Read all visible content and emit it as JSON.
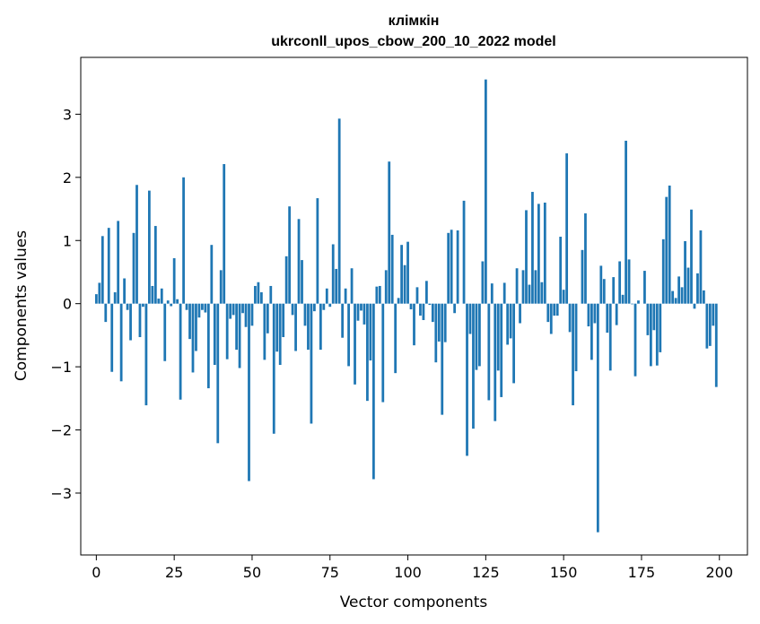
{
  "chart_data": {
    "type": "bar",
    "title": "клімкін",
    "subtitle": "ukrconll_upos_cbow_200_10_2022 model",
    "xlabel": "Vector components",
    "ylabel": "Components values",
    "xlim": [
      -5,
      209
    ],
    "ylim": [
      -3.98,
      3.9
    ],
    "xticks": [
      0,
      25,
      50,
      75,
      100,
      125,
      150,
      175,
      200
    ],
    "yticks": [
      -3,
      -2,
      -1,
      0,
      1,
      2,
      3
    ],
    "grid": false,
    "bar_color": "#1f77b4",
    "x": [
      0,
      1,
      2,
      3,
      4,
      5,
      6,
      7,
      8,
      9,
      10,
      11,
      12,
      13,
      14,
      15,
      16,
      17,
      18,
      19,
      20,
      21,
      22,
      23,
      24,
      25,
      26,
      27,
      28,
      29,
      30,
      31,
      32,
      33,
      34,
      35,
      36,
      37,
      38,
      39,
      40,
      41,
      42,
      43,
      44,
      45,
      46,
      47,
      48,
      49,
      50,
      51,
      52,
      53,
      54,
      55,
      56,
      57,
      58,
      59,
      60,
      61,
      62,
      63,
      64,
      65,
      66,
      67,
      68,
      69,
      70,
      71,
      72,
      73,
      74,
      75,
      76,
      77,
      78,
      79,
      80,
      81,
      82,
      83,
      84,
      85,
      86,
      87,
      88,
      89,
      90,
      91,
      92,
      93,
      94,
      95,
      96,
      97,
      98,
      99,
      100,
      101,
      102,
      103,
      104,
      105,
      106,
      107,
      108,
      109,
      110,
      111,
      112,
      113,
      114,
      115,
      116,
      117,
      118,
      119,
      120,
      121,
      122,
      123,
      124,
      125,
      126,
      127,
      128,
      129,
      130,
      131,
      132,
      133,
      134,
      135,
      136,
      137,
      138,
      139,
      140,
      141,
      142,
      143,
      144,
      145,
      146,
      147,
      148,
      149,
      150,
      151,
      152,
      153,
      154,
      155,
      156,
      157,
      158,
      159,
      160,
      161,
      162,
      163,
      164,
      165,
      166,
      167,
      168,
      169,
      170,
      171,
      172,
      173,
      174,
      175,
      176,
      177,
      178,
      179,
      180,
      181,
      182,
      183,
      184,
      185,
      186,
      187,
      188,
      189,
      190,
      191,
      192,
      193,
      194,
      195,
      196,
      197,
      198,
      199
    ],
    "values": [
      0.15,
      0.33,
      1.07,
      -0.29,
      1.2,
      -1.08,
      0.18,
      1.31,
      -1.23,
      0.4,
      -0.1,
      -0.58,
      1.12,
      1.88,
      -0.53,
      -0.05,
      -1.61,
      1.79,
      0.28,
      1.23,
      0.08,
      0.24,
      -0.91,
      0.05,
      -0.04,
      0.72,
      0.07,
      -1.52,
      2.0,
      -0.1,
      -0.56,
      -1.09,
      -0.75,
      -0.22,
      -0.1,
      -0.14,
      -1.34,
      0.93,
      -0.97,
      -2.21,
      0.53,
      2.21,
      -0.88,
      -0.24,
      -0.18,
      -0.73,
      -1.02,
      -0.15,
      -0.37,
      -2.81,
      -0.35,
      0.28,
      0.34,
      0.18,
      -0.89,
      -0.47,
      0.28,
      -2.06,
      -0.76,
      -0.97,
      -0.53,
      0.75,
      1.54,
      -0.18,
      -0.75,
      1.34,
      0.69,
      -0.35,
      -0.73,
      -1.9,
      -0.12,
      1.67,
      -0.73,
      -0.1,
      0.24,
      -0.05,
      0.94,
      0.55,
      2.93,
      -0.54,
      0.24,
      -0.99,
      0.56,
      -1.28,
      -0.27,
      -0.11,
      -0.33,
      -1.54,
      -0.9,
      -2.78,
      0.27,
      0.28,
      -1.56,
      0.53,
      2.25,
      1.09,
      -1.1,
      0.09,
      0.93,
      0.61,
      0.98,
      -0.09,
      -0.66,
      0.26,
      -0.19,
      -0.26,
      0.36,
      -0.02,
      -0.29,
      -0.93,
      -0.6,
      -1.76,
      -0.61,
      1.12,
      1.17,
      -0.15,
      1.16,
      0.0,
      1.63,
      -2.41,
      -0.48,
      -1.98,
      -1.05,
      -0.99,
      0.67,
      3.55,
      -1.53,
      0.32,
      -1.86,
      -1.06,
      -1.48,
      0.33,
      -0.65,
      -0.55,
      -1.26,
      0.56,
      -0.31,
      0.53,
      1.48,
      0.3,
      1.77,
      0.53,
      1.58,
      0.34,
      1.6,
      -0.29,
      -0.48,
      -0.19,
      -0.19,
      1.06,
      0.22,
      2.38,
      -0.45,
      -1.61,
      -1.07,
      0.0,
      0.85,
      1.43,
      -0.36,
      -0.89,
      -0.31,
      -3.62,
      0.6,
      0.39,
      -0.46,
      -1.06,
      0.42,
      -0.34,
      0.67,
      0.14,
      2.58,
      0.7,
      -0.01,
      -1.15,
      0.05,
      0.0,
      0.52,
      -0.5,
      -0.99,
      -0.42,
      -0.98,
      -0.77,
      1.02,
      1.69,
      1.87,
      0.2,
      0.09,
      0.43,
      0.26,
      0.99,
      0.57,
      1.49,
      -0.08,
      0.48,
      1.16,
      0.21,
      -0.71,
      -0.67,
      -0.35,
      -1.32
    ]
  }
}
